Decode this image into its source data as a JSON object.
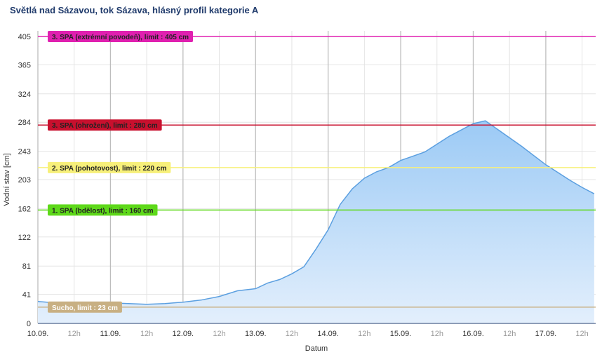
{
  "chart_data": {
    "type": "area",
    "title": "Světlá nad Sázavou, tok Sázava, hlásný profil kategorie A",
    "y_label": "Vodní stav [cm]",
    "x_label": "Datum",
    "x": [
      0,
      6,
      12,
      18,
      24,
      30,
      36,
      42,
      48,
      54,
      60,
      66,
      72,
      76,
      80,
      84,
      88,
      92,
      96,
      100,
      104,
      108,
      112,
      116,
      120,
      124,
      128,
      132,
      136,
      140,
      144,
      148,
      152,
      156,
      160,
      164,
      168,
      172,
      176,
      180,
      184
    ],
    "series": [
      {
        "name": "Vodní stav",
        "color": "#5b9fe0",
        "values": [
          31,
          29,
          30,
          29,
          29,
          28,
          27,
          28,
          30,
          33,
          38,
          46,
          49,
          57,
          62,
          70,
          80,
          105,
          132,
          168,
          190,
          205,
          214,
          220,
          230,
          236,
          242,
          253,
          264,
          273,
          282,
          286,
          274,
          262,
          250,
          237,
          224,
          213,
          202,
          192,
          183
        ]
      }
    ],
    "xlim": [
      0,
      184.5
    ],
    "xticks": [
      {
        "value": 0,
        "label": "10.09."
      },
      {
        "value": 12,
        "label": "12h"
      },
      {
        "value": 24,
        "label": "11.09."
      },
      {
        "value": 36,
        "label": "12h"
      },
      {
        "value": 48,
        "label": "12.09."
      },
      {
        "value": 60,
        "label": "12h"
      },
      {
        "value": 72,
        "label": "13.09."
      },
      {
        "value": 84,
        "label": "12h"
      },
      {
        "value": 96,
        "label": "14.09."
      },
      {
        "value": 108,
        "label": "12h"
      },
      {
        "value": 120,
        "label": "15.09."
      },
      {
        "value": 132,
        "label": "12h"
      },
      {
        "value": 144,
        "label": "16.09."
      },
      {
        "value": 156,
        "label": "12h"
      },
      {
        "value": 168,
        "label": "17.09."
      },
      {
        "value": 180,
        "label": "12h"
      }
    ],
    "ylim": [
      0,
      405
    ],
    "yticks": [
      0,
      41,
      81,
      122,
      162,
      203,
      243,
      284,
      324,
      365,
      405
    ],
    "grid": true,
    "thresholds": [
      {
        "label": "3. SPA (extrémní povodeň), limit : 405 cm",
        "value": 405,
        "color": "#e020b0"
      },
      {
        "label": "3. SPA (ohrožení), limit : 280 cm",
        "value": 280,
        "color": "#c8102e"
      },
      {
        "label": "2. SPA (pohotovost), limit : 220 cm",
        "value": 220,
        "color": "#f7f07a"
      },
      {
        "label": "1. SPA (bdělost), limit : 160 cm",
        "value": 160,
        "color": "#5ed91a"
      },
      {
        "label": "Sucho, limit : 23 cm",
        "value": 23,
        "color": "#c8b083"
      }
    ]
  }
}
